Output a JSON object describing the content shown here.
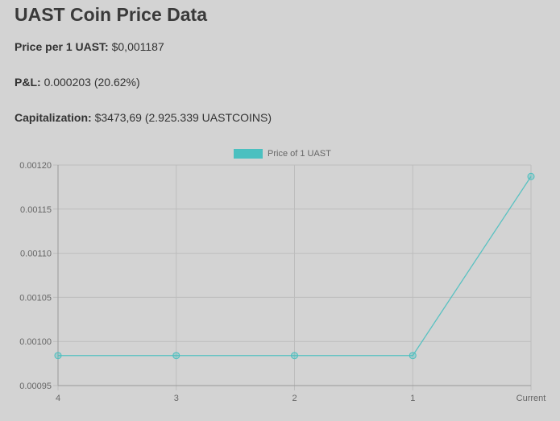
{
  "header": {
    "title": "UAST Coin Price Data"
  },
  "stats": {
    "price_label": "Price per 1 UAST:",
    "price_value": "$0,001187",
    "pnl_label": "P&L:",
    "pnl_value": "0.000203 (20.62%)",
    "cap_label": "Capitalization:",
    "cap_value": "$3473,69 (2.925.339 UASTCOINS)"
  },
  "chart_data": {
    "type": "line",
    "categories": [
      "4",
      "3",
      "2",
      "1",
      "Current"
    ],
    "series": [
      {
        "name": "Price of 1 UAST",
        "values": [
          0.000984,
          0.000984,
          0.000984,
          0.000984,
          0.001187
        ],
        "color": "#4bc0c0"
      }
    ],
    "ylim": [
      0.00095,
      0.0012
    ],
    "yticks": [
      "0.00120",
      "0.00115",
      "0.00110",
      "0.00105",
      "0.00100",
      "0.00095"
    ],
    "ytick_values": [
      0.0012,
      0.00115,
      0.0011,
      0.00105,
      0.001,
      0.00095
    ],
    "grid": true,
    "legend": "top-center"
  }
}
